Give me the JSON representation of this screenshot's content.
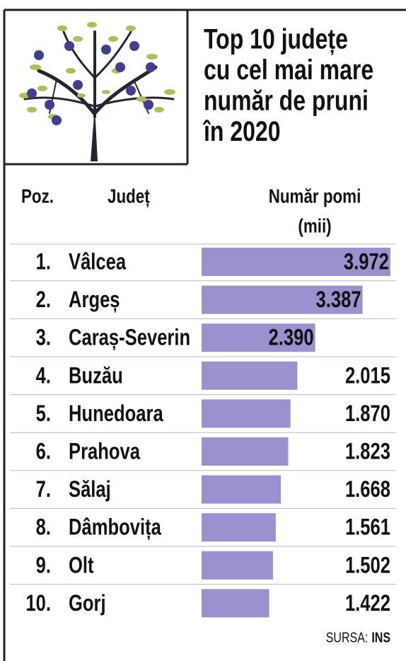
{
  "chart_data": {
    "type": "bar",
    "title": [
      "Top 10 județe",
      "cu cel mai mare",
      "număr de pruni",
      "în 2020"
    ],
    "headers": {
      "position": "Poz.",
      "category": "Județ",
      "value": [
        "Număr pomi",
        "(mii)"
      ]
    },
    "positions": [
      "1.",
      "2.",
      "3.",
      "4.",
      "5.",
      "6.",
      "7.",
      "8.",
      "9.",
      "10."
    ],
    "categories": [
      "Vâlcea",
      "Argeș",
      "Caraș-Severin",
      "Buzău",
      "Hunedoara",
      "Prahova",
      "Sălaj",
      "Dâmbovița",
      "Olt",
      "Gorj"
    ],
    "values": [
      3972,
      3387,
      2390,
      2015,
      1870,
      1823,
      1668,
      1561,
      1502,
      1422
    ],
    "value_labels": [
      "3.972",
      "3.387",
      "2.390",
      "2.015",
      "1.870",
      "1.823",
      "1.668",
      "1.561",
      "1.502",
      "1.422"
    ],
    "color": "#9a91cf",
    "source_label": "SURSA:",
    "source": "INS"
  }
}
